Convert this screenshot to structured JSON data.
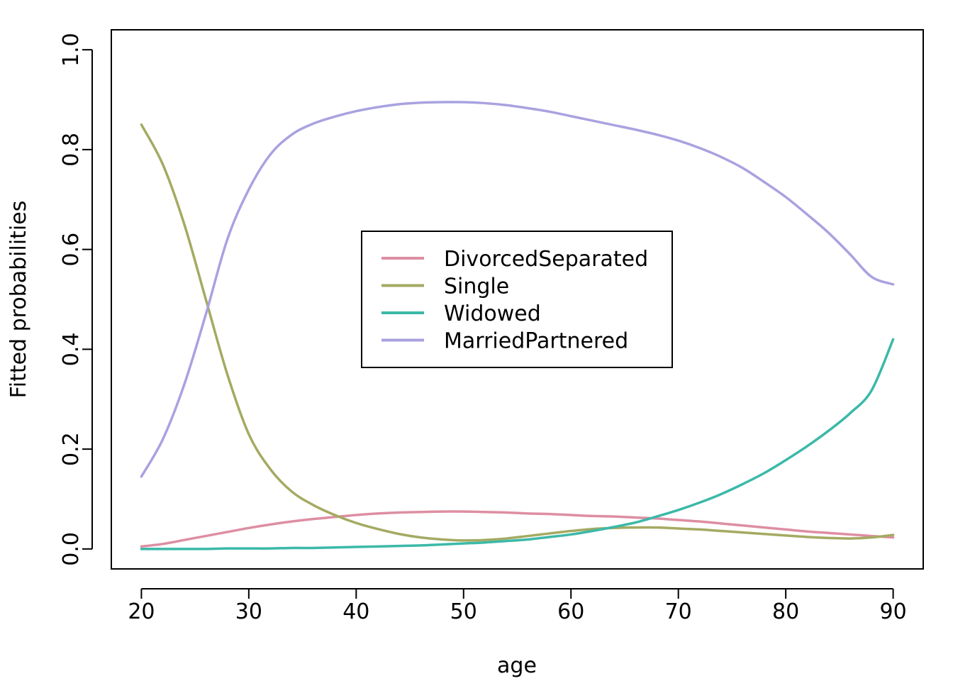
{
  "chart_data": {
    "type": "line",
    "title": "",
    "xlabel": "age",
    "ylabel": "Fitted probabilities",
    "xlim": [
      17.2,
      92.8
    ],
    "ylim": [
      -0.04,
      1.04
    ],
    "xticks": [
      20,
      30,
      40,
      50,
      60,
      70,
      80,
      90
    ],
    "yticks": [
      0.0,
      0.2,
      0.4,
      0.6,
      0.8,
      1.0
    ],
    "xtick_labels": [
      "20",
      "30",
      "40",
      "50",
      "60",
      "70",
      "80",
      "90"
    ],
    "ytick_labels": [
      "0.0",
      "0.2",
      "0.4",
      "0.6",
      "0.8",
      "1.0"
    ],
    "grid": false,
    "legend_position": "center",
    "x": [
      20,
      22,
      24,
      26,
      28,
      30,
      32,
      34,
      36,
      38,
      40,
      42,
      44,
      46,
      48,
      50,
      52,
      54,
      56,
      58,
      60,
      62,
      64,
      66,
      68,
      70,
      72,
      74,
      76,
      78,
      80,
      82,
      84,
      86,
      88,
      90
    ],
    "series": [
      {
        "name": "DivorcedSeparated",
        "color": "#DD8EA2",
        "values": [
          0.005,
          0.01,
          0.018,
          0.026,
          0.034,
          0.042,
          0.049,
          0.055,
          0.06,
          0.064,
          0.068,
          0.071,
          0.073,
          0.074,
          0.075,
          0.075,
          0.074,
          0.073,
          0.071,
          0.07,
          0.068,
          0.066,
          0.065,
          0.063,
          0.061,
          0.058,
          0.055,
          0.051,
          0.047,
          0.043,
          0.039,
          0.035,
          0.032,
          0.029,
          0.026,
          0.023
        ]
      },
      {
        "name": "Single",
        "color": "#A4AA62",
        "values": [
          0.85,
          0.77,
          0.65,
          0.5,
          0.35,
          0.23,
          0.16,
          0.115,
          0.088,
          0.068,
          0.052,
          0.04,
          0.03,
          0.023,
          0.019,
          0.017,
          0.018,
          0.021,
          0.026,
          0.031,
          0.036,
          0.04,
          0.042,
          0.043,
          0.043,
          0.041,
          0.039,
          0.036,
          0.033,
          0.03,
          0.027,
          0.024,
          0.022,
          0.021,
          0.023,
          0.028
        ]
      },
      {
        "name": "Widowed",
        "color": "#3BB9A8",
        "values": [
          0.0,
          0.0,
          0.0,
          0.0,
          0.001,
          0.001,
          0.001,
          0.002,
          0.002,
          0.003,
          0.004,
          0.005,
          0.006,
          0.007,
          0.009,
          0.011,
          0.013,
          0.016,
          0.019,
          0.024,
          0.029,
          0.036,
          0.044,
          0.053,
          0.065,
          0.078,
          0.093,
          0.11,
          0.13,
          0.152,
          0.178,
          0.206,
          0.237,
          0.272,
          0.318,
          0.42
        ]
      },
      {
        "name": "MarriedPartnered",
        "color": "#A9A2E0",
        "values": [
          0.145,
          0.22,
          0.33,
          0.47,
          0.62,
          0.72,
          0.79,
          0.83,
          0.852,
          0.866,
          0.877,
          0.885,
          0.891,
          0.894,
          0.895,
          0.895,
          0.893,
          0.889,
          0.883,
          0.876,
          0.867,
          0.858,
          0.849,
          0.84,
          0.83,
          0.818,
          0.803,
          0.785,
          0.763,
          0.735,
          0.705,
          0.67,
          0.633,
          0.59,
          0.545,
          0.53
        ]
      }
    ]
  }
}
